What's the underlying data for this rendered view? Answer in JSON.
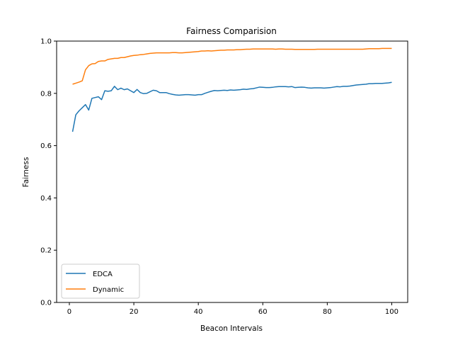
{
  "chart_data": {
    "type": "line",
    "title": "Fairness Comparision",
    "xlabel": "Beacon Intervals",
    "ylabel": "Fairness",
    "xlim": [
      -3.95,
      104.95
    ],
    "ylim": [
      0.0,
      1.0
    ],
    "xticks": [
      0,
      20,
      40,
      60,
      80,
      100
    ],
    "yticks": [
      0.0,
      0.2,
      0.4,
      0.6,
      0.8,
      1.0
    ],
    "ytick_labels": [
      "0.0",
      "0.2",
      "0.4",
      "0.6",
      "0.8",
      "1.0"
    ],
    "grid": false,
    "legend": "lower-left",
    "x": [
      1,
      2,
      3,
      4,
      5,
      6,
      7,
      8,
      9,
      10,
      11,
      12,
      13,
      14,
      15,
      16,
      17,
      18,
      19,
      20,
      21,
      22,
      23,
      24,
      25,
      26,
      27,
      28,
      29,
      30,
      31,
      32,
      33,
      34,
      35,
      36,
      37,
      38,
      39,
      40,
      41,
      42,
      43,
      44,
      45,
      46,
      47,
      48,
      49,
      50,
      51,
      52,
      53,
      54,
      55,
      56,
      57,
      58,
      59,
      60,
      61,
      62,
      63,
      64,
      65,
      66,
      67,
      68,
      69,
      70,
      71,
      72,
      73,
      74,
      75,
      76,
      77,
      78,
      79,
      80,
      81,
      82,
      83,
      84,
      85,
      86,
      87,
      88,
      89,
      90,
      91,
      92,
      93,
      94,
      95,
      96,
      97,
      98,
      99,
      100
    ],
    "series": [
      {
        "name": "EDCA",
        "color": "#1f77b4",
        "values": [
          0.653,
          0.718,
          0.733,
          0.745,
          0.757,
          0.736,
          0.781,
          0.784,
          0.787,
          0.776,
          0.81,
          0.808,
          0.81,
          0.827,
          0.814,
          0.82,
          0.814,
          0.817,
          0.81,
          0.803,
          0.815,
          0.803,
          0.799,
          0.8,
          0.806,
          0.812,
          0.81,
          0.803,
          0.803,
          0.803,
          0.799,
          0.796,
          0.794,
          0.793,
          0.794,
          0.795,
          0.795,
          0.794,
          0.793,
          0.795,
          0.795,
          0.8,
          0.804,
          0.808,
          0.811,
          0.81,
          0.811,
          0.812,
          0.811,
          0.813,
          0.812,
          0.813,
          0.814,
          0.816,
          0.815,
          0.817,
          0.818,
          0.821,
          0.824,
          0.823,
          0.822,
          0.822,
          0.823,
          0.825,
          0.826,
          0.826,
          0.826,
          0.825,
          0.826,
          0.822,
          0.823,
          0.824,
          0.823,
          0.821,
          0.82,
          0.821,
          0.821,
          0.821,
          0.82,
          0.821,
          0.822,
          0.824,
          0.826,
          0.825,
          0.827,
          0.827,
          0.828,
          0.83,
          0.832,
          0.833,
          0.834,
          0.835,
          0.837,
          0.837,
          0.838,
          0.838,
          0.838,
          0.839,
          0.84,
          0.842
        ]
      },
      {
        "name": "Dynamic",
        "color": "#ff7f0e",
        "values": [
          0.835,
          0.839,
          0.843,
          0.848,
          0.89,
          0.906,
          0.913,
          0.914,
          0.922,
          0.924,
          0.924,
          0.93,
          0.932,
          0.934,
          0.934,
          0.937,
          0.937,
          0.94,
          0.943,
          0.945,
          0.946,
          0.948,
          0.949,
          0.951,
          0.953,
          0.954,
          0.955,
          0.955,
          0.955,
          0.955,
          0.955,
          0.956,
          0.956,
          0.955,
          0.955,
          0.956,
          0.957,
          0.958,
          0.959,
          0.96,
          0.962,
          0.962,
          0.963,
          0.962,
          0.963,
          0.964,
          0.965,
          0.965,
          0.966,
          0.966,
          0.966,
          0.967,
          0.967,
          0.968,
          0.969,
          0.969,
          0.97,
          0.97,
          0.97,
          0.97,
          0.97,
          0.97,
          0.97,
          0.969,
          0.97,
          0.97,
          0.969,
          0.969,
          0.969,
          0.968,
          0.968,
          0.968,
          0.968,
          0.968,
          0.968,
          0.968,
          0.969,
          0.969,
          0.969,
          0.969,
          0.969,
          0.969,
          0.969,
          0.969,
          0.969,
          0.969,
          0.969,
          0.969,
          0.969,
          0.969,
          0.969,
          0.97,
          0.971,
          0.971,
          0.971,
          0.971,
          0.972,
          0.972,
          0.972,
          0.972
        ]
      }
    ]
  }
}
